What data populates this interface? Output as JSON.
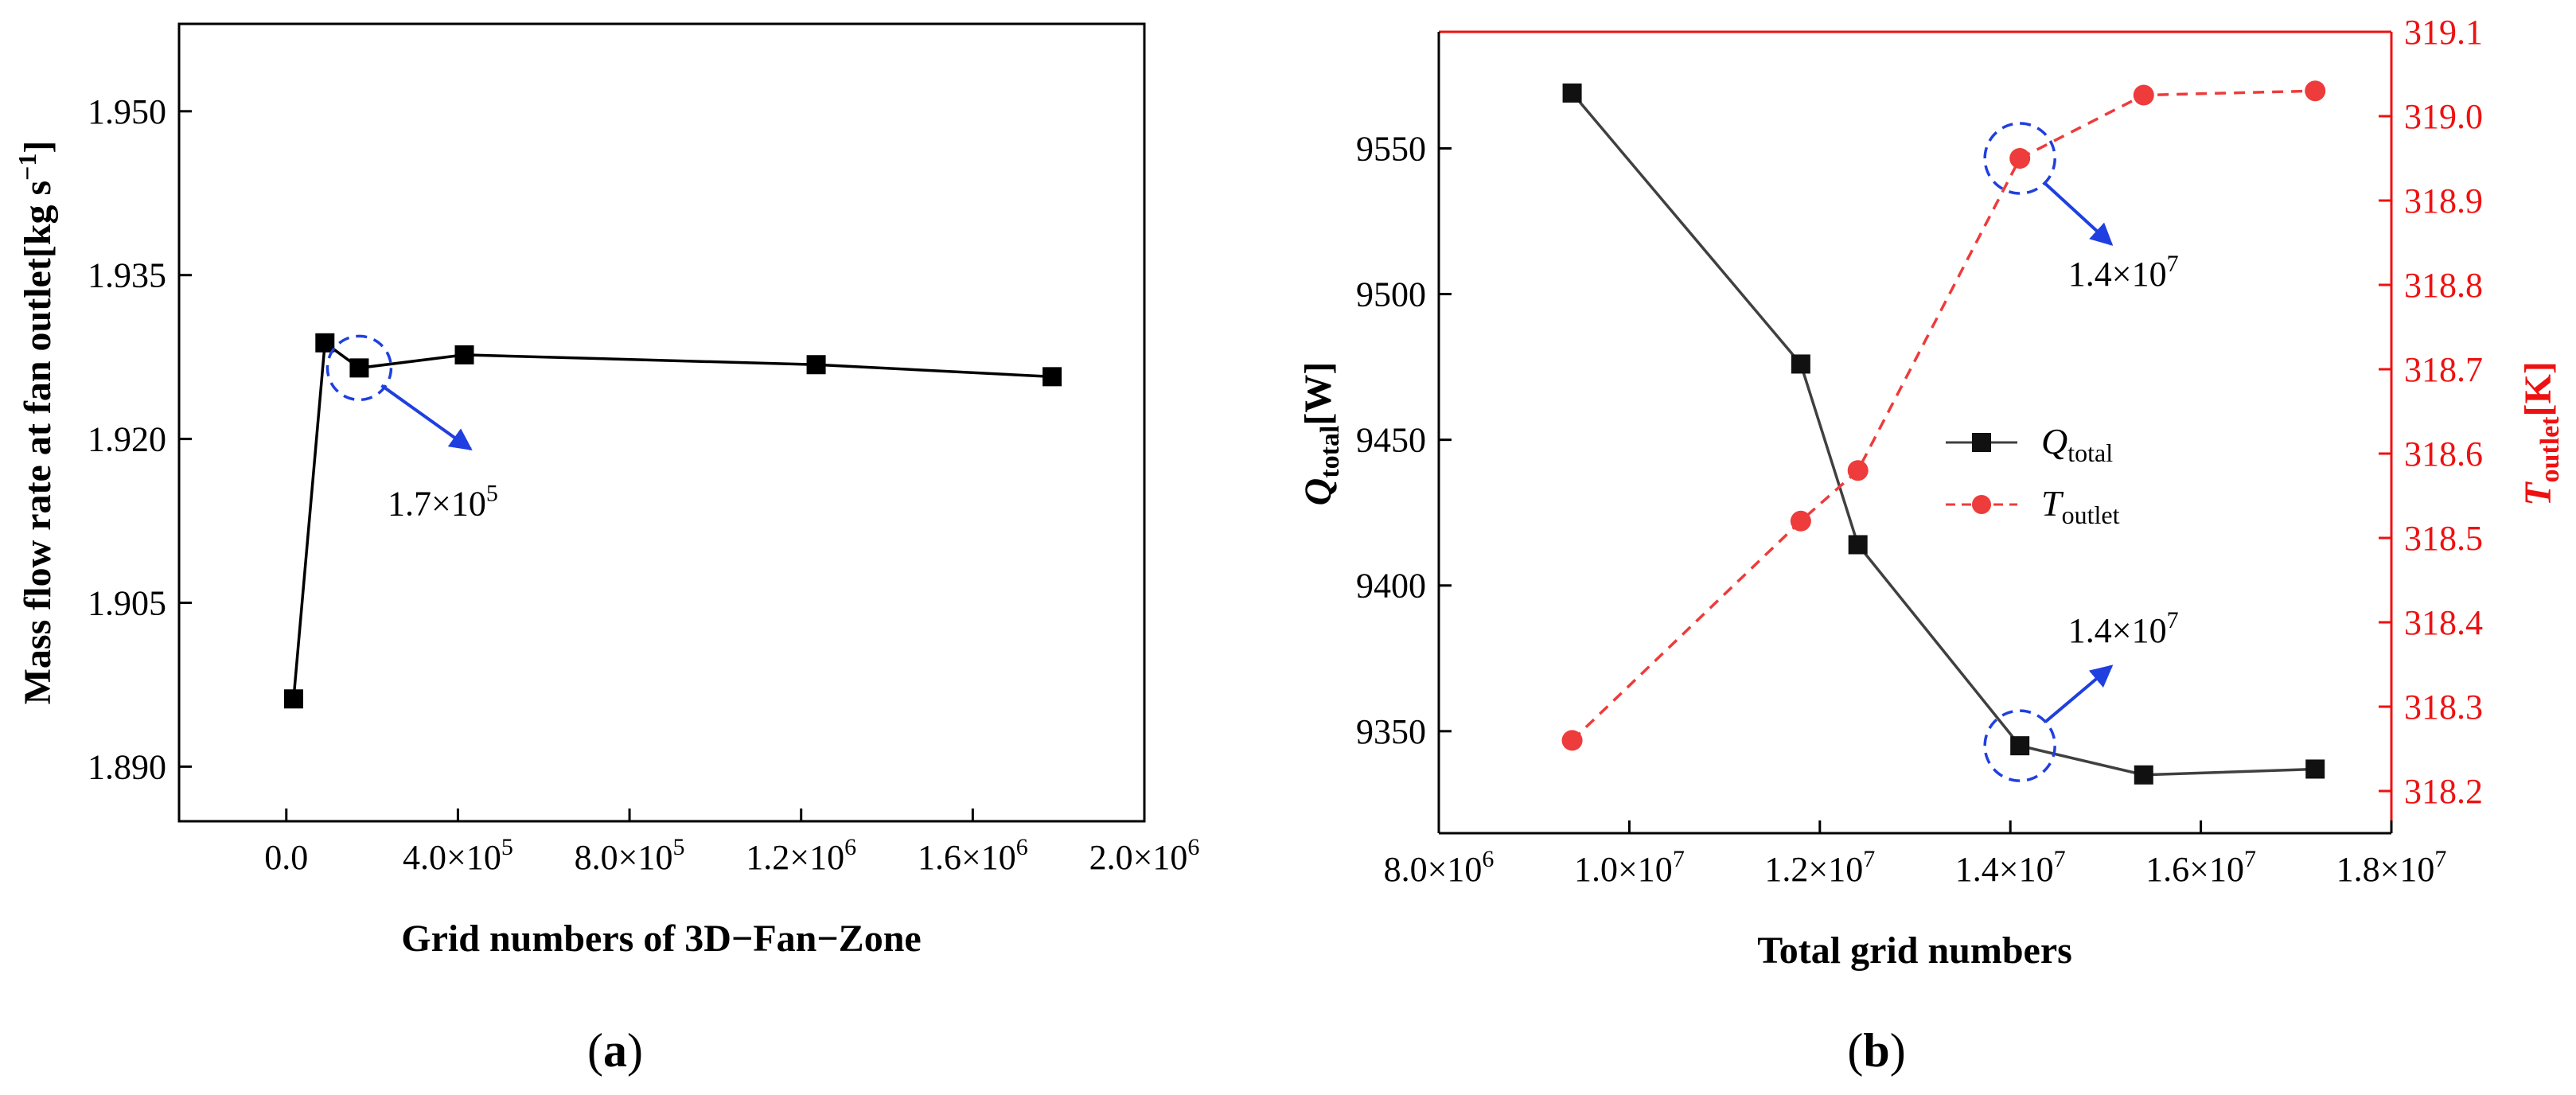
{
  "chart_data": [
    {
      "id": "a",
      "type": "line",
      "caption_letter": "a",
      "xlabel": "Grid numbers of 3D−Fan−Zone",
      "ylabel": "Mass flow rate at fan outlet[kg s",
      "ylabel_exp": "−1",
      "ylabel_close": "]",
      "xlim": [
        -250000,
        2000000
      ],
      "ylim": [
        1.885,
        1.958
      ],
      "x_ticks": [
        {
          "value": 0,
          "mant": "0.0",
          "exp": ""
        },
        {
          "value": 400000,
          "mant": "4.0×10",
          "exp": "5"
        },
        {
          "value": 800000,
          "mant": "8.0×10",
          "exp": "5"
        },
        {
          "value": 1200000,
          "mant": "1.2×10",
          "exp": "6"
        },
        {
          "value": 1600000,
          "mant": "1.6×10",
          "exp": "6"
        },
        {
          "value": 2000000,
          "mant": "2.0×10",
          "exp": "6"
        }
      ],
      "y_ticks": [
        {
          "value": 1.89,
          "label": "1.890"
        },
        {
          "value": 1.905,
          "label": "1.905"
        },
        {
          "value": 1.92,
          "label": "1.920"
        },
        {
          "value": 1.935,
          "label": "1.935"
        },
        {
          "value": 1.95,
          "label": "1.950"
        }
      ],
      "series": [
        {
          "name": "Mass flow rate",
          "color": "#000000",
          "marker": "square",
          "x": [
            17000,
            90000,
            170000,
            415000,
            1235000,
            1785000
          ],
          "y": [
            1.8962,
            1.9288,
            1.9265,
            1.9277,
            1.9268,
            1.9257
          ]
        }
      ],
      "annotation": {
        "text_mant": "1.7×10",
        "text_exp": "5",
        "x": 170000,
        "y": 1.9265,
        "color": "#1f3fe0"
      }
    },
    {
      "id": "b",
      "type": "line",
      "caption_letter": "b",
      "xlabel": "Total grid numbers",
      "ylabel_left_base": "Q",
      "ylabel_left_sub": "total",
      "ylabel_left_unit": "[W]",
      "ylabel_right_base": "T",
      "ylabel_right_sub": "outlet",
      "ylabel_right_unit": "[K]",
      "xlim": [
        8000000,
        18000000
      ],
      "ylim_left": [
        9315,
        9590
      ],
      "ylim_right": [
        318.15,
        319.1
      ],
      "x_ticks": [
        {
          "value": 8000000,
          "mant": "8.0×10",
          "exp": "6"
        },
        {
          "value": 10000000,
          "mant": "1.0×10",
          "exp": "7"
        },
        {
          "value": 12000000,
          "mant": "1.2×10",
          "exp": "7"
        },
        {
          "value": 14000000,
          "mant": "1.4×10",
          "exp": "7"
        },
        {
          "value": 16000000,
          "mant": "1.6×10",
          "exp": "7"
        },
        {
          "value": 18000000,
          "mant": "1.8×10",
          "exp": "7"
        }
      ],
      "y_ticks_left": [
        {
          "value": 9350,
          "label": "9350"
        },
        {
          "value": 9400,
          "label": "9400"
        },
        {
          "value": 9450,
          "label": "9450"
        },
        {
          "value": 9500,
          "label": "9500"
        },
        {
          "value": 9550,
          "label": "9550"
        }
      ],
      "y_ticks_right": [
        {
          "value": 318.2,
          "label": "318.2"
        },
        {
          "value": 318.3,
          "label": "318.3"
        },
        {
          "value": 318.4,
          "label": "318.4"
        },
        {
          "value": 318.5,
          "label": "318.5"
        },
        {
          "value": 318.6,
          "label": "318.6"
        },
        {
          "value": 318.7,
          "label": "318.7"
        },
        {
          "value": 318.8,
          "label": "318.8"
        },
        {
          "value": 318.9,
          "label": "318.9"
        },
        {
          "value": 319.0,
          "label": "319.0"
        },
        {
          "value": 319.1,
          "label": "319.1"
        }
      ],
      "series": [
        {
          "name_base": "Q",
          "name_sub": "total",
          "axis": "left",
          "color": "#404040",
          "marker": "square",
          "dash": "solid",
          "x": [
            9400000,
            11800000,
            12400000,
            14100000,
            15400000,
            17200000
          ],
          "y": [
            9569,
            9476,
            9414,
            9345,
            9335,
            9337
          ]
        },
        {
          "name_base": "T",
          "name_sub": "outlet",
          "axis": "right",
          "color": "#ee3b3b",
          "marker": "circle",
          "dash": "dashed",
          "x": [
            9400000,
            11800000,
            12400000,
            14100000,
            15400000,
            17200000
          ],
          "y": [
            318.26,
            318.52,
            318.58,
            318.95,
            319.025,
            319.03
          ]
        }
      ],
      "annotations": [
        {
          "text_mant": "1.4×10",
          "text_exp": "7",
          "x": 14100000,
          "y": 318.95,
          "axis": "right",
          "color": "#1f3fe0",
          "label_dir": "down"
        },
        {
          "text_mant": "1.4×10",
          "text_exp": "7",
          "x": 14100000,
          "y": 9345,
          "axis": "left",
          "color": "#1f3fe0",
          "label_dir": "up"
        }
      ]
    }
  ]
}
